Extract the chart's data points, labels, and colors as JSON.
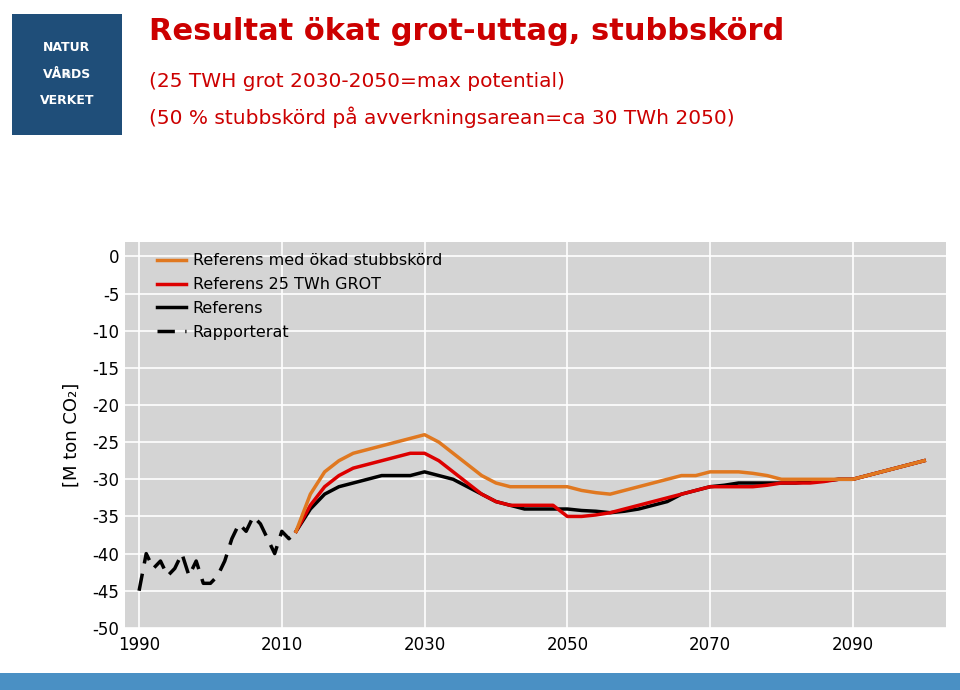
{
  "title_line1": "Resultat ökat grot-uttag, stubbskörd",
  "title_line2": "(25 TWH grot 2030-2050=max potential)",
  "title_line3": "(50 % stubbskörd på avverkningsarean=ca 30 TWh 2050)",
  "title_color": "#cc0000",
  "subtitle_color": "#cc0000",
  "ylabel": "[M ton CO₂]",
  "xlim": [
    1988,
    2103
  ],
  "ylim": [
    -50,
    2
  ],
  "yticks": [
    0,
    -5,
    -10,
    -15,
    -20,
    -25,
    -30,
    -35,
    -40,
    -45,
    -50
  ],
  "xticks": [
    1990,
    2010,
    2030,
    2050,
    2070,
    2090
  ],
  "fig_bg": "#ffffff",
  "plot_bg": "#d4d4d4",
  "grid_color": "#ffffff",
  "rapporterat_x": [
    1990,
    1991,
    1992,
    1993,
    1994,
    1995,
    1996,
    1997,
    1998,
    1999,
    2000,
    2001,
    2002,
    2003,
    2004,
    2005,
    2006,
    2007,
    2008,
    2009,
    2010,
    2011,
    2012
  ],
  "rapporterat_y": [
    -45,
    -40,
    -42,
    -41,
    -43,
    -42,
    -40,
    -43,
    -41,
    -44,
    -44,
    -43,
    -41,
    -38,
    -36,
    -37,
    -35,
    -36,
    -38,
    -40,
    -37,
    -38,
    -37
  ],
  "referens_x": [
    2012,
    2014,
    2016,
    2018,
    2020,
    2022,
    2024,
    2026,
    2028,
    2030,
    2032,
    2034,
    2036,
    2038,
    2040,
    2042,
    2044,
    2046,
    2048,
    2050,
    2052,
    2054,
    2056,
    2058,
    2060,
    2062,
    2064,
    2066,
    2068,
    2070,
    2072,
    2074,
    2076,
    2078,
    2080,
    2082,
    2084,
    2086,
    2088,
    2090,
    2092,
    2094,
    2096,
    2098,
    2100
  ],
  "referens_y": [
    -37,
    -34,
    -32,
    -31,
    -30.5,
    -30,
    -29.5,
    -29.5,
    -29.5,
    -29,
    -29.5,
    -30,
    -31,
    -32,
    -33,
    -33.5,
    -34,
    -34,
    -34,
    -34,
    -34.2,
    -34.3,
    -34.5,
    -34.3,
    -34,
    -33.5,
    -33,
    -32,
    -31.5,
    -31,
    -30.8,
    -30.5,
    -30.5,
    -30.5,
    -30.5,
    -30.5,
    -30.3,
    -30.2,
    -30,
    -30,
    -29.5,
    -29,
    -28.5,
    -28,
    -27.5
  ],
  "ref25_x": [
    2012,
    2014,
    2016,
    2018,
    2020,
    2022,
    2024,
    2026,
    2028,
    2030,
    2032,
    2034,
    2036,
    2038,
    2040,
    2042,
    2044,
    2046,
    2048,
    2050,
    2052,
    2054,
    2056,
    2058,
    2060,
    2062,
    2064,
    2066,
    2068,
    2070,
    2072,
    2074,
    2076,
    2078,
    2080,
    2082,
    2084,
    2086,
    2088,
    2090,
    2092,
    2094,
    2096,
    2098,
    2100
  ],
  "ref25_y": [
    -37,
    -33.5,
    -31,
    -29.5,
    -28.5,
    -28,
    -27.5,
    -27,
    -26.5,
    -26.5,
    -27.5,
    -29,
    -30.5,
    -32,
    -33,
    -33.5,
    -33.5,
    -33.5,
    -33.5,
    -35,
    -35,
    -34.8,
    -34.5,
    -34,
    -33.5,
    -33,
    -32.5,
    -32,
    -31.5,
    -31,
    -31,
    -31,
    -31,
    -30.8,
    -30.5,
    -30.5,
    -30.5,
    -30.3,
    -30,
    -30,
    -29.5,
    -29,
    -28.5,
    -28,
    -27.5
  ],
  "orange_x": [
    2012,
    2014,
    2016,
    2018,
    2020,
    2022,
    2024,
    2026,
    2028,
    2030,
    2032,
    2034,
    2036,
    2038,
    2040,
    2042,
    2044,
    2046,
    2048,
    2050,
    2052,
    2054,
    2056,
    2058,
    2060,
    2062,
    2064,
    2066,
    2068,
    2070,
    2072,
    2074,
    2076,
    2078,
    2080,
    2082,
    2084,
    2086,
    2088,
    2090,
    2092,
    2094,
    2096,
    2098,
    2100
  ],
  "orange_y": [
    -37,
    -32,
    -29,
    -27.5,
    -26.5,
    -26,
    -25.5,
    -25,
    -24.5,
    -24,
    -25,
    -26.5,
    -28,
    -29.5,
    -30.5,
    -31,
    -31,
    -31,
    -31,
    -31,
    -31.5,
    -31.8,
    -32,
    -31.5,
    -31,
    -30.5,
    -30,
    -29.5,
    -29.5,
    -29,
    -29,
    -29,
    -29.2,
    -29.5,
    -30,
    -30,
    -30,
    -30,
    -30,
    -30,
    -29.5,
    -29,
    -28.5,
    -28,
    -27.5
  ],
  "legend_entries": [
    {
      "label": "Referens med ökad stubbskörd",
      "color": "#e07820",
      "style": "solid"
    },
    {
      "label": "Referens 25 TWh GROT",
      "color": "#dd0000",
      "style": "solid"
    },
    {
      "label": "Referens",
      "color": "#000000",
      "style": "solid"
    },
    {
      "label": "Rapporterat",
      "color": "#000000",
      "style": "dashed"
    }
  ],
  "logo_color": "#1f4e79",
  "logo_text": [
    "NATUR",
    "VÅRDS",
    "VERKET"
  ],
  "bottom_bar_color": "#4a90c4"
}
